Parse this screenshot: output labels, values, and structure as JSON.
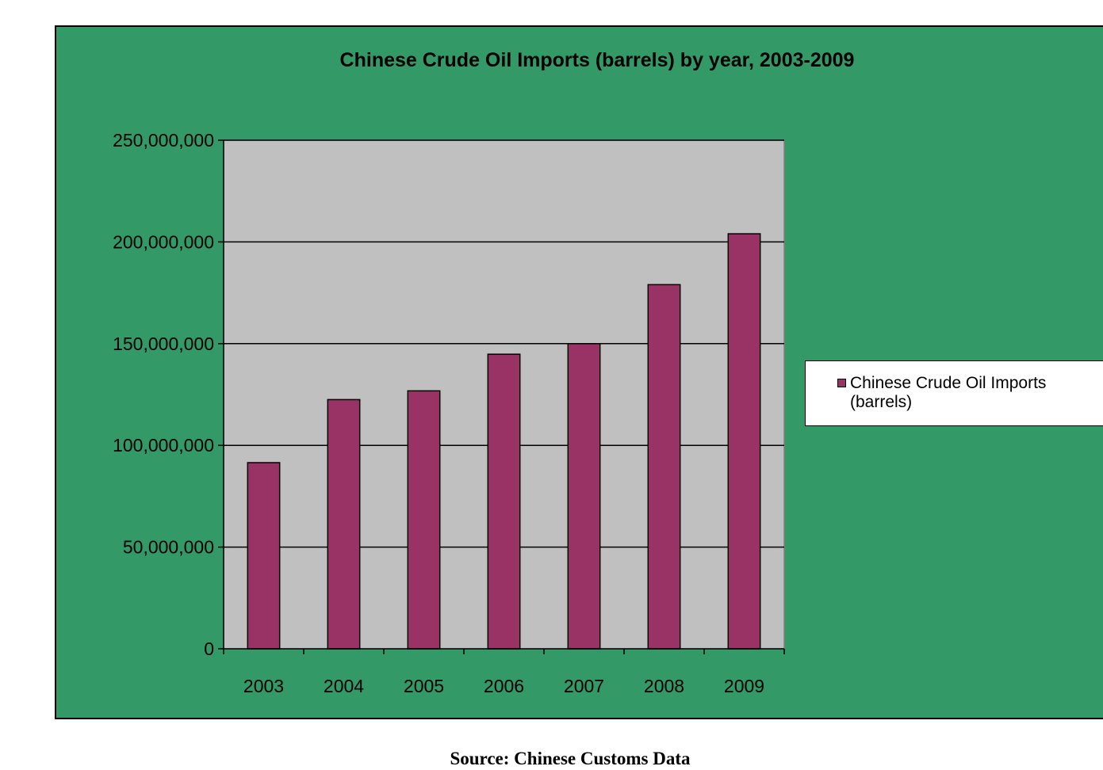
{
  "source_note": "Source: Chinese Customs Data",
  "colors": {
    "chart_area_bg": "#339966",
    "plot_area_bg": "#c0c0c0",
    "bar_fill": "#993366",
    "gridline": "#000000"
  },
  "chart_data": {
    "type": "bar",
    "title": "Chinese Crude Oil Imports  (barrels)  by year,  2003-2009",
    "xlabel": "",
    "ylabel": "",
    "categories": [
      "2003",
      "2004",
      "2005",
      "2006",
      "2007",
      "2008",
      "2009"
    ],
    "series": [
      {
        "name": "Chinese Crude Oil Imports (barrels)",
        "values": [
          91500000,
          122500000,
          126800000,
          144800000,
          150000000,
          179000000,
          204000000
        ]
      }
    ],
    "ylim": [
      0,
      250000000
    ],
    "y_ticks": [
      0,
      50000000,
      100000000,
      150000000,
      200000000,
      250000000
    ],
    "y_tick_labels": [
      "0",
      "50,000,000",
      "100,000,000",
      "150,000,000",
      "200,000,000",
      "250,000,000"
    ],
    "grid": true,
    "legend_position": "right"
  }
}
